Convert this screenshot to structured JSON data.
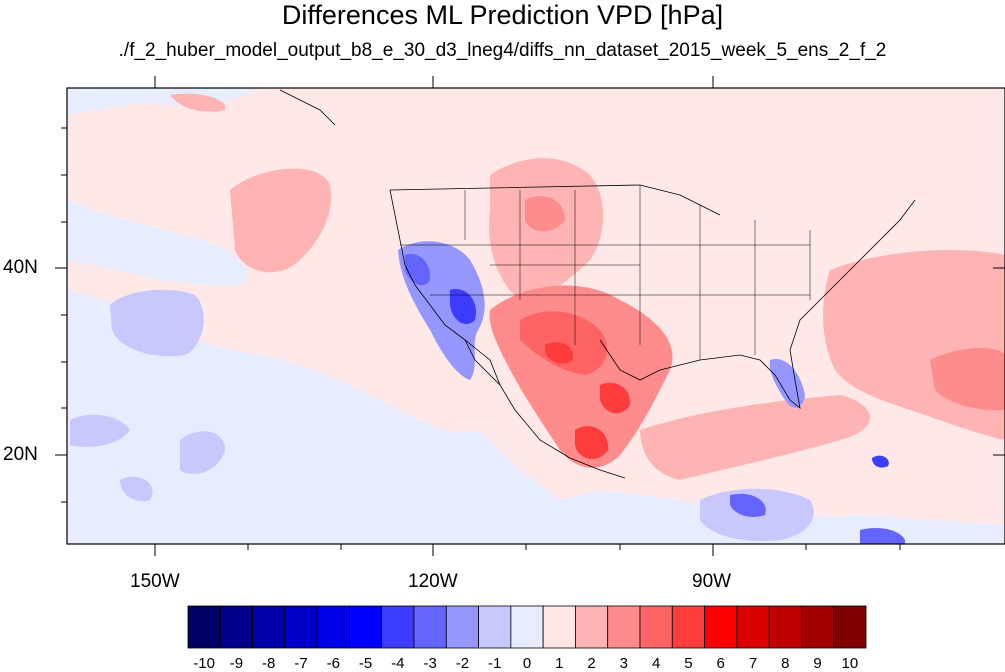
{
  "title": "Differences ML Prediction VPD [hPa]",
  "subtitle": "./f_2_huber_model_output_b8_e_30_d3_lneg4/diffs_nn_dataset_2015_week_5_ens_2_f_2",
  "chart_data": {
    "type": "heatmap",
    "projection": "lat-lon",
    "longitude_ticks": [
      "150W",
      "120W",
      "90W"
    ],
    "latitude_ticks": [
      "40N",
      "20N"
    ],
    "colorbar": {
      "labels": [
        "-10",
        "-9",
        "-8",
        "-7",
        "-6",
        "-5",
        "-4",
        "-3",
        "-2",
        "-1",
        "0",
        "1",
        "2",
        "3",
        "4",
        "5",
        "6",
        "7",
        "8",
        "9",
        "10"
      ],
      "colors": [
        "#000066",
        "#00008b",
        "#0000aa",
        "#0000c8",
        "#0000e6",
        "#0000ff",
        "#3c3cff",
        "#6464ff",
        "#9696ff",
        "#c8c8ff",
        "#e8ecff",
        "#ffe6e6",
        "#ffb4b4",
        "#ff8c8c",
        "#ff6464",
        "#ff3c3c",
        "#ff0000",
        "#dc0000",
        "#be0000",
        "#a00000",
        "#800000"
      ]
    },
    "regions": [
      {
        "area": "Southwest Mexico / Texas",
        "sign": "positive",
        "peak": 6
      },
      {
        "area": "Western Atlantic",
        "sign": "positive",
        "peak": 3
      },
      {
        "area": "California",
        "sign": "negative",
        "peak": -4
      },
      {
        "area": "Eastern Pacific",
        "sign": "negative",
        "peak": -2
      },
      {
        "area": "Central America",
        "sign": "negative",
        "peak": -4
      },
      {
        "area": "Florida",
        "sign": "negative",
        "peak": -3
      }
    ]
  }
}
